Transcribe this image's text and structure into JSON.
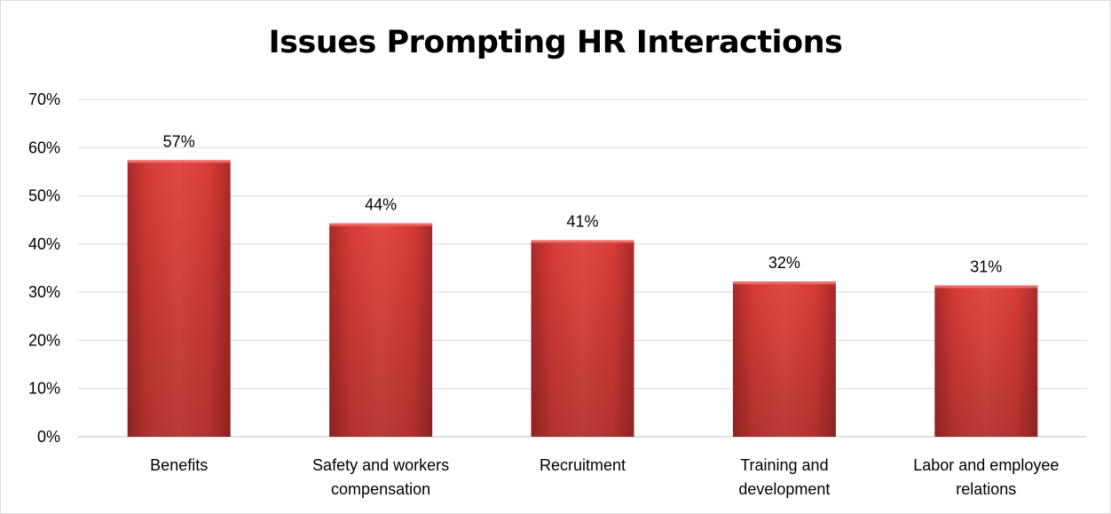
{
  "chart_data": {
    "type": "bar",
    "title": "Issues Prompting HR Interactions",
    "categories": [
      [
        "Benefits"
      ],
      [
        "Safety and workers",
        "compensation"
      ],
      [
        "Recruitment"
      ],
      [
        "Training and",
        "development"
      ],
      [
        "Labor and employee",
        "relations"
      ]
    ],
    "values": [
      57.4,
      44.3,
      40.8,
      32.2,
      31.4
    ],
    "data_labels": [
      "57%",
      "44%",
      "41%",
      "32%",
      "31%"
    ],
    "ylim": [
      0,
      70
    ],
    "yticks": [
      0,
      10,
      20,
      30,
      40,
      50,
      60,
      70
    ],
    "ytick_labels": [
      "0%",
      "10%",
      "20%",
      "30%",
      "40%",
      "50%",
      "60%",
      "70%"
    ],
    "xlabel": "",
    "ylabel": "",
    "grid": true,
    "legend": "none",
    "bar_color": "#d63b38"
  }
}
